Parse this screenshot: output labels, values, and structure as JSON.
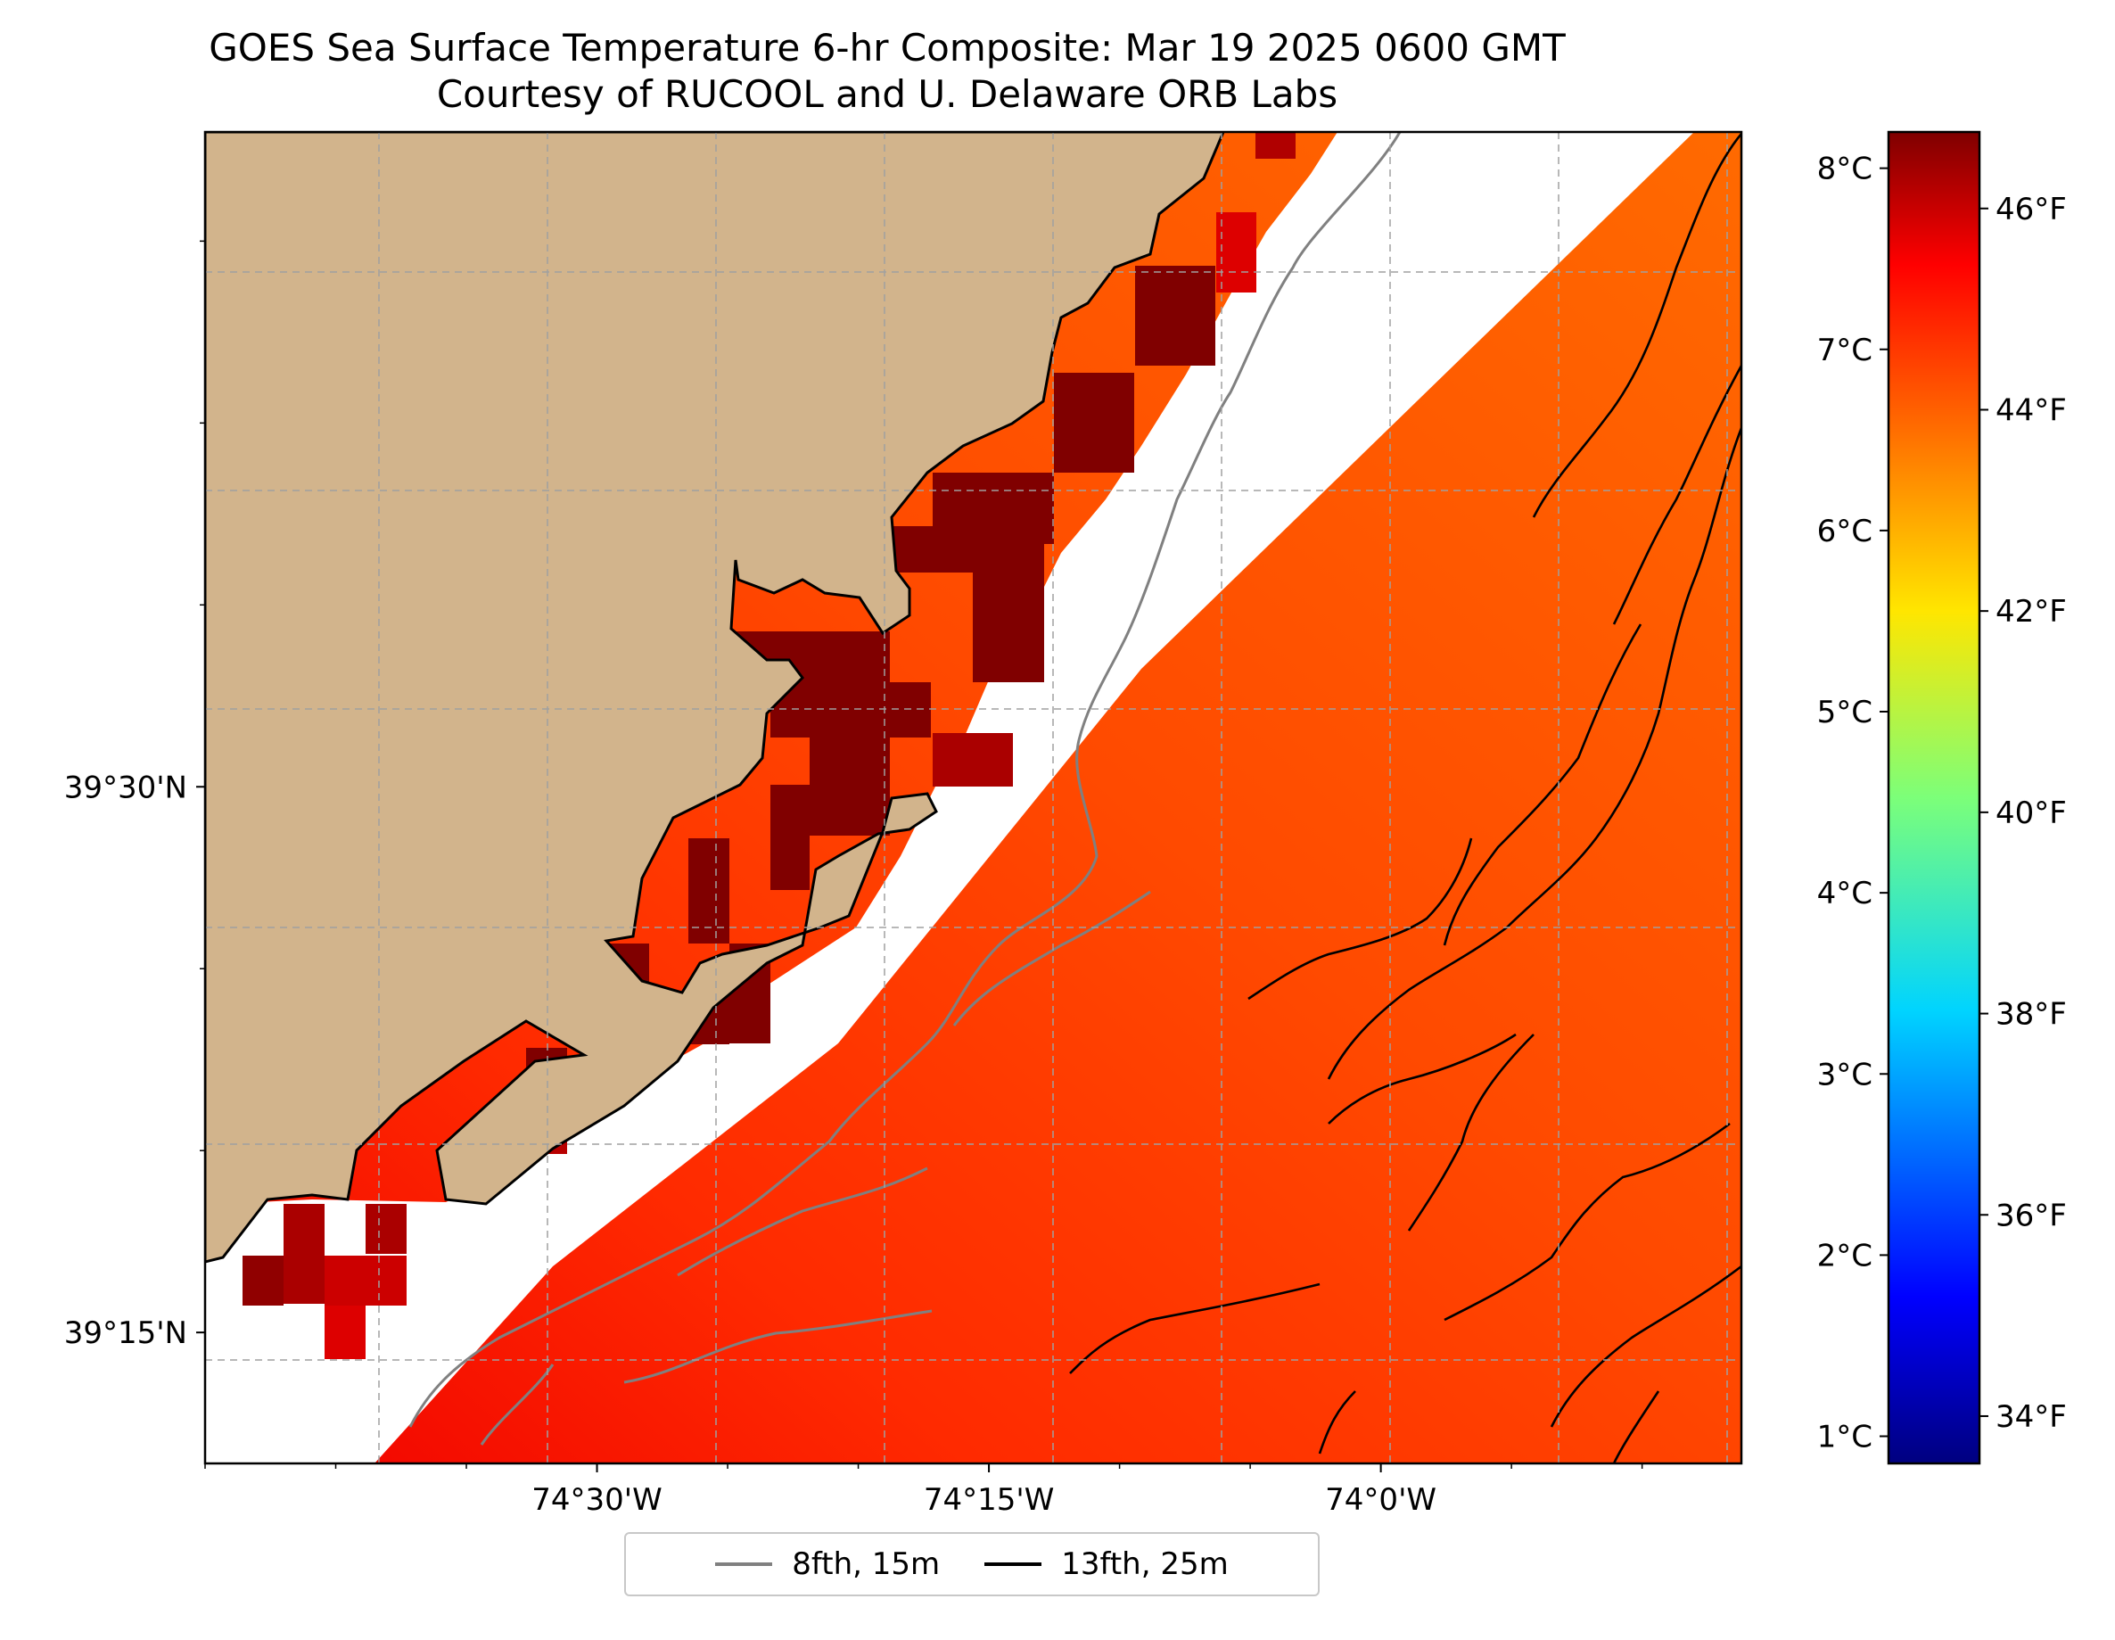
{
  "title": {
    "line1": "GOES Sea Surface Temperature 6-hr Composite: Mar 19 2025 0600 GMT",
    "line2": "Courtesy of RUCOOL and U. Delaware ORB Labs"
  },
  "colors": {
    "land": "#d2b48c",
    "no_data": "#ffffff",
    "coast": "#000000",
    "isobath_15m": "#808080",
    "isobath_25m": "#000000",
    "grid": "#a0a0a0"
  },
  "map": {
    "lon_range": [
      -74.75,
      -73.77
    ],
    "lat_range": [
      39.19,
      39.8
    ],
    "lon_ticks": [
      {
        "value": -74.5,
        "label": "74°30'W"
      },
      {
        "value": -74.25,
        "label": "74°15'W"
      },
      {
        "value": -74.0,
        "label": "74°0'W"
      }
    ],
    "lat_ticks": [
      {
        "value": 39.5,
        "label": "39°30'N"
      },
      {
        "value": 39.25,
        "label": "39°15'N"
      }
    ]
  },
  "colorbar": {
    "celsius_ticks": [
      "1°C",
      "2°C",
      "3°C",
      "4°C",
      "5°C",
      "6°C",
      "7°C",
      "8°C"
    ],
    "fahrenheit_ticks": [
      "34°F",
      "36°F",
      "38°F",
      "40°F",
      "42°F",
      "44°F",
      "46°F"
    ],
    "range_c": [
      0.85,
      8.2
    ],
    "colormap": "jet"
  },
  "legend": {
    "entries": [
      {
        "label": "8fth, 15m",
        "color": "#808080"
      },
      {
        "label": "13fth, 25m",
        "color": "#000000"
      }
    ]
  }
}
